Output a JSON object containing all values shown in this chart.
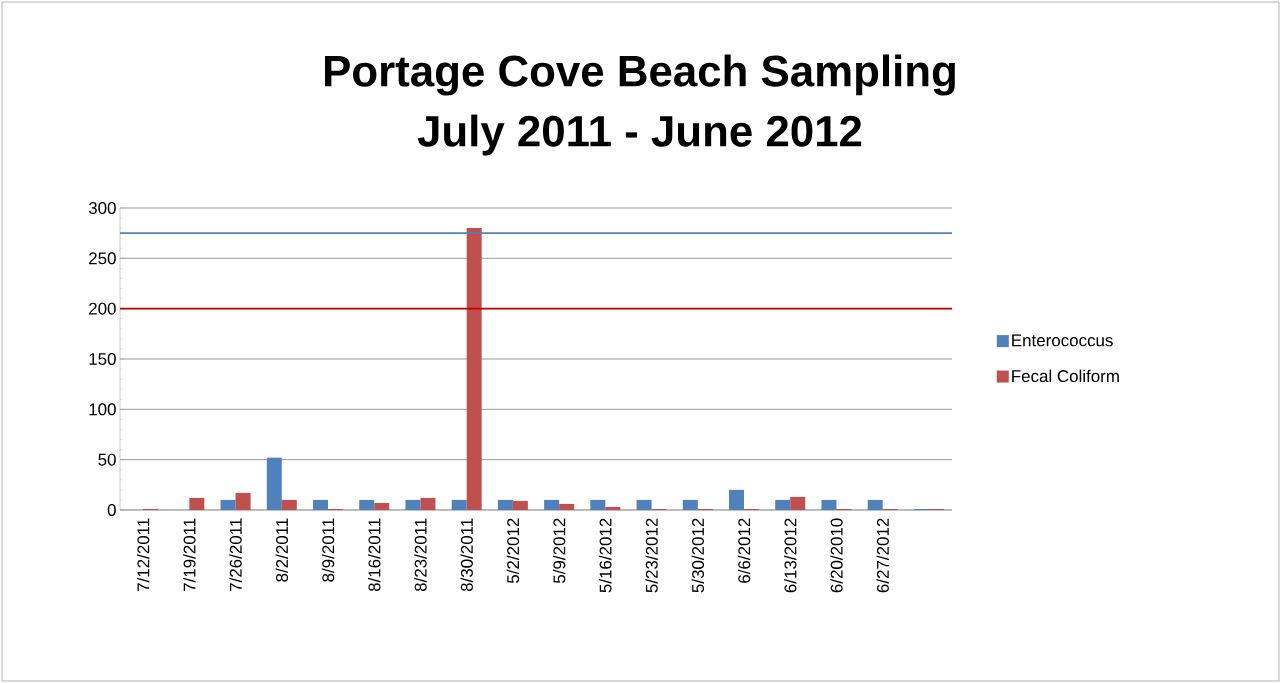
{
  "chart_data": {
    "type": "bar",
    "title": "Portage Cove Beach Sampling",
    "subtitle": "July 2011 - June 2012",
    "categories": [
      "7/12/2011",
      "7/19/2011",
      "7/26/2011",
      "8/2/2011",
      "8/9/2011",
      "8/16/2011",
      "8/23/2011",
      "8/30/2011",
      "5/2/2012",
      "5/9/2012",
      "5/16/2012",
      "5/23/2012",
      "5/30/2012",
      "6/6/2012",
      "6/13/2012",
      "6/20/2010",
      "6/27/2012",
      null
    ],
    "series": [
      {
        "name": "Enterococcus",
        "color": "#4f81bd",
        "values": [
          0,
          0,
          10,
          52,
          10,
          10,
          10,
          10,
          10,
          10,
          10,
          10,
          10,
          20,
          10,
          10,
          10,
          1
        ]
      },
      {
        "name": "Fecal Coliform",
        "color": "#c0504d",
        "values": [
          1,
          12,
          17,
          10,
          1,
          7,
          12,
          280,
          9,
          6,
          3,
          1,
          1,
          1,
          13,
          1,
          1,
          1
        ]
      }
    ],
    "ylim": [
      0,
      300
    ],
    "yticks": [
      0,
      50,
      100,
      150,
      200,
      250,
      300
    ],
    "grid": "y",
    "legend": "right",
    "ref_lines": [
      {
        "axis": "y",
        "value": 275,
        "color": "#4f81bd"
      },
      {
        "axis": "y",
        "value": 200,
        "color": "#c00000"
      }
    ]
  }
}
